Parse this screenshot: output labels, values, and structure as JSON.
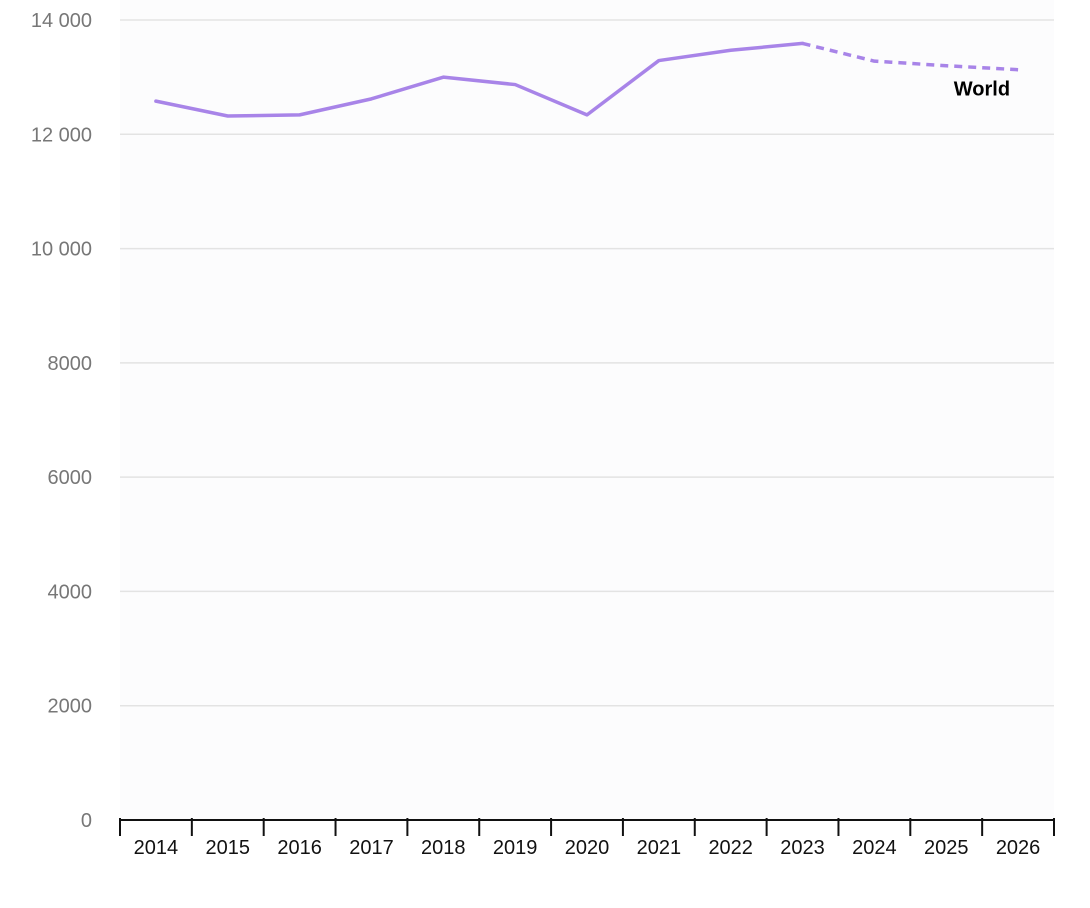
{
  "chart_data": {
    "type": "line",
    "title": "",
    "xlabel": "",
    "ylabel": "",
    "x": [
      2014,
      2015,
      2016,
      2017,
      2018,
      2019,
      2020,
      2021,
      2022,
      2023,
      2024,
      2025,
      2026
    ],
    "ylim": [
      0,
      14000
    ],
    "y_ticks": [
      0,
      2000,
      4000,
      6000,
      8000,
      10000,
      12000,
      14000
    ],
    "y_tick_labels": [
      "0",
      "2000",
      "4000",
      "6000",
      "8000",
      "10 000",
      "12 000",
      "14 000"
    ],
    "x_tick_labels": [
      "2014",
      "2015",
      "2016",
      "2017",
      "2018",
      "2019",
      "2020",
      "2021",
      "2022",
      "2023",
      "2024",
      "2025",
      "2026"
    ],
    "grid": "horizontal",
    "series": [
      {
        "name": "World",
        "color": "#a884e8",
        "values": [
          12580,
          12320,
          12340,
          12620,
          13000,
          12870,
          12340,
          13290,
          13470,
          13590,
          13280,
          13200,
          13130
        ],
        "actual_through": 2023,
        "projection_style": "dashed"
      }
    ]
  }
}
